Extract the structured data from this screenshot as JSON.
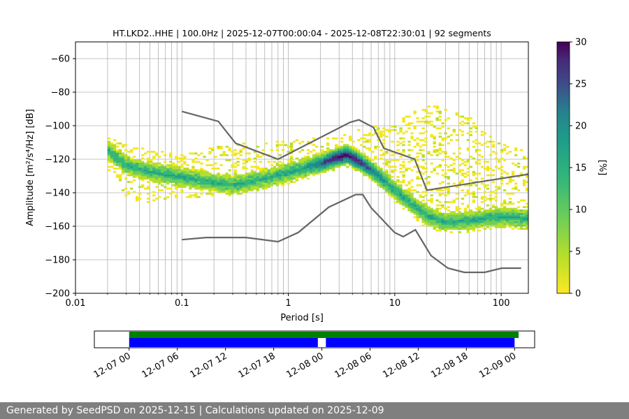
{
  "chart_data": [
    {
      "type": "heatmap",
      "title": "HT.LKD2..HHE | 100.0Hz | 2025-12-07T00:00:04 - 2025-12-08T22:30:01 | 92 segments",
      "xlabel": "Period [s]",
      "ylabel": "Amplitude [m²/s⁴/Hz] [dB]",
      "x_scale": "log",
      "xlim": [
        0.01,
        180
      ],
      "ylim": [
        -200,
        -50
      ],
      "x_ticks": [
        0.01,
        0.1,
        1,
        10,
        100
      ],
      "x_tick_labels": [
        "0.01",
        "0.1",
        "1",
        "10",
        "100"
      ],
      "y_ticks": [
        -200,
        -180,
        -160,
        -140,
        -120,
        -100,
        -80,
        -60
      ],
      "y_tick_labels": [
        "−200",
        "−180",
        "−160",
        "−140",
        "−120",
        "−100",
        "−80",
        "−60"
      ],
      "grid": true,
      "colorbar": {
        "label": "[%]",
        "range": [
          0,
          30
        ],
        "ticks": [
          0,
          5,
          10,
          15,
          20,
          25,
          30
        ],
        "tick_labels": [
          "0",
          "5",
          "10",
          "15",
          "20",
          "25",
          "30"
        ],
        "colormap": "viridis_r"
      },
      "psd_mode_center": {
        "period": [
          0.02,
          0.03,
          0.05,
          0.08,
          0.12,
          0.2,
          0.3,
          0.5,
          0.8,
          1.2,
          2,
          3,
          3.6,
          5,
          7,
          10,
          15,
          20,
          30,
          50,
          80,
          120,
          180
        ],
        "amplitude_db": [
          -115,
          -124,
          -128,
          -130,
          -132,
          -134,
          -136,
          -133,
          -130,
          -127,
          -123,
          -119,
          -118,
          -123,
          -130,
          -139,
          -148,
          -154,
          -158,
          -157,
          -155,
          -155,
          -156
        ]
      },
      "psd_spread_db": {
        "period": [
          0.02,
          0.03,
          0.05,
          0.1,
          0.3,
          1,
          3,
          5,
          10,
          20,
          50,
          100,
          180
        ],
        "lower": [
          -128,
          -143,
          -146,
          -143,
          -140,
          -135,
          -122,
          -128,
          -143,
          -162,
          -164,
          -160,
          -158
        ],
        "upper": [
          -106,
          -113,
          -115,
          -118,
          -112,
          -110,
          -108,
          -102,
          -100,
          -88,
          -96,
          -112,
          -117
        ]
      },
      "series": [
        {
          "name": "NHNM",
          "color": "#666666",
          "x": [
            0.1,
            0.22,
            0.32,
            0.8,
            3.8,
            4.6,
            6.3,
            7.9,
            15.4,
            20,
            354.8
          ],
          "y": [
            -91.5,
            -97.4,
            -110.5,
            -120,
            -98,
            -96.5,
            -101,
            -113.5,
            -120,
            -138.5,
            -126
          ]
        },
        {
          "name": "NLNM",
          "color": "#666666",
          "x": [
            0.1,
            0.17,
            0.4,
            0.8,
            1.24,
            2.4,
            4.3,
            5,
            6,
            10,
            12,
            15.6,
            21.9,
            31.6,
            45,
            70,
            101,
            154
          ],
          "y": [
            -168,
            -166.7,
            -166.7,
            -169.2,
            -163.7,
            -148.6,
            -141.1,
            -141.1,
            -149,
            -163.8,
            -166.2,
            -162.1,
            -177.5,
            -185,
            -187.5,
            -187.5,
            -185,
            -185
          ]
        }
      ]
    },
    {
      "type": "timeline",
      "x_tick_labels": [
        "12-07 00",
        "12-07 06",
        "12-07 12",
        "12-07 18",
        "12-08 00",
        "12-08 06",
        "12-08 12",
        "12-08 18",
        "12-09 00"
      ],
      "x_range": [
        "2025-12-06T19:40",
        "2025-12-09T02:30"
      ],
      "bars": [
        {
          "name": "segments-available",
          "color": "#008000",
          "spans": [
            [
              "2025-12-07T00:00:04",
              "2025-12-09T00:30:00"
            ]
          ]
        },
        {
          "name": "segments-processed",
          "color": "#0000ff",
          "spans": [
            [
              "2025-12-07T00:00:04",
              "2025-12-07T23:30:00"
            ],
            [
              "2025-12-08T00:30:00",
              "2025-12-09T00:00:00"
            ]
          ]
        }
      ]
    }
  ],
  "footer": {
    "text": "Generated by SeedPSD on 2025-12-15 | Calculations updated on 2025-12-09"
  }
}
